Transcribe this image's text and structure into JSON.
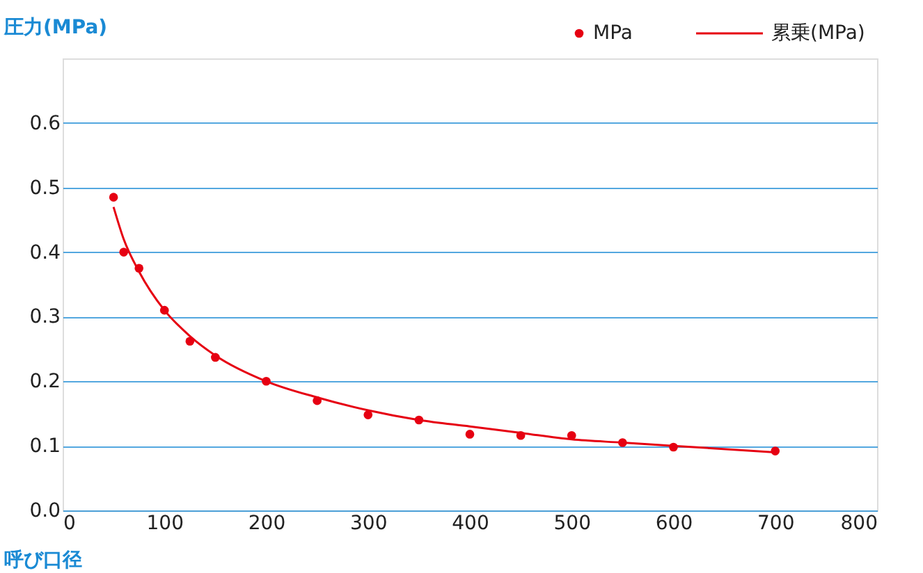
{
  "chart_data": {
    "type": "scatter",
    "xlabel": "呼び口径",
    "ylabel": "圧力(MPa)",
    "xlim": [
      0,
      800
    ],
    "xticks": [
      0,
      100,
      200,
      300,
      400,
      500,
      600,
      700,
      800
    ],
    "ylim": [
      0,
      0.7
    ],
    "yticks": [
      {
        "value": 0,
        "label": "0.0"
      },
      0.1,
      0.2,
      0.3,
      0.4,
      0.5,
      0.6
    ],
    "grid": "y",
    "legend": "top right",
    "series": [
      {
        "name": "MPa",
        "marker": "circle",
        "color": "#e60012",
        "x": [
          50,
          60,
          75,
          100,
          125,
          150,
          200,
          250,
          300,
          350,
          400,
          450,
          500,
          550,
          600,
          700
        ],
        "values": [
          0.485,
          0.4,
          0.375,
          0.31,
          0.262,
          0.237,
          0.2,
          0.17,
          0.148,
          0.14,
          0.118,
          0.116,
          0.116,
          0.105,
          0.098,
          0.092
        ]
      },
      {
        "name": "累乗(MPa)",
        "type": "line",
        "marker": "none",
        "color": "#e60012",
        "line_style": "solid",
        "x": [
          50,
          60,
          75,
          100,
          125,
          150,
          200,
          250,
          300,
          350,
          400,
          450,
          500,
          550,
          600,
          700
        ],
        "values": [
          0.47,
          0.42,
          0.37,
          0.31,
          0.27,
          0.24,
          0.2,
          0.175,
          0.155,
          0.14,
          0.13,
          0.12,
          0.11,
          0.105,
          0.1,
          0.09
        ]
      }
    ]
  }
}
